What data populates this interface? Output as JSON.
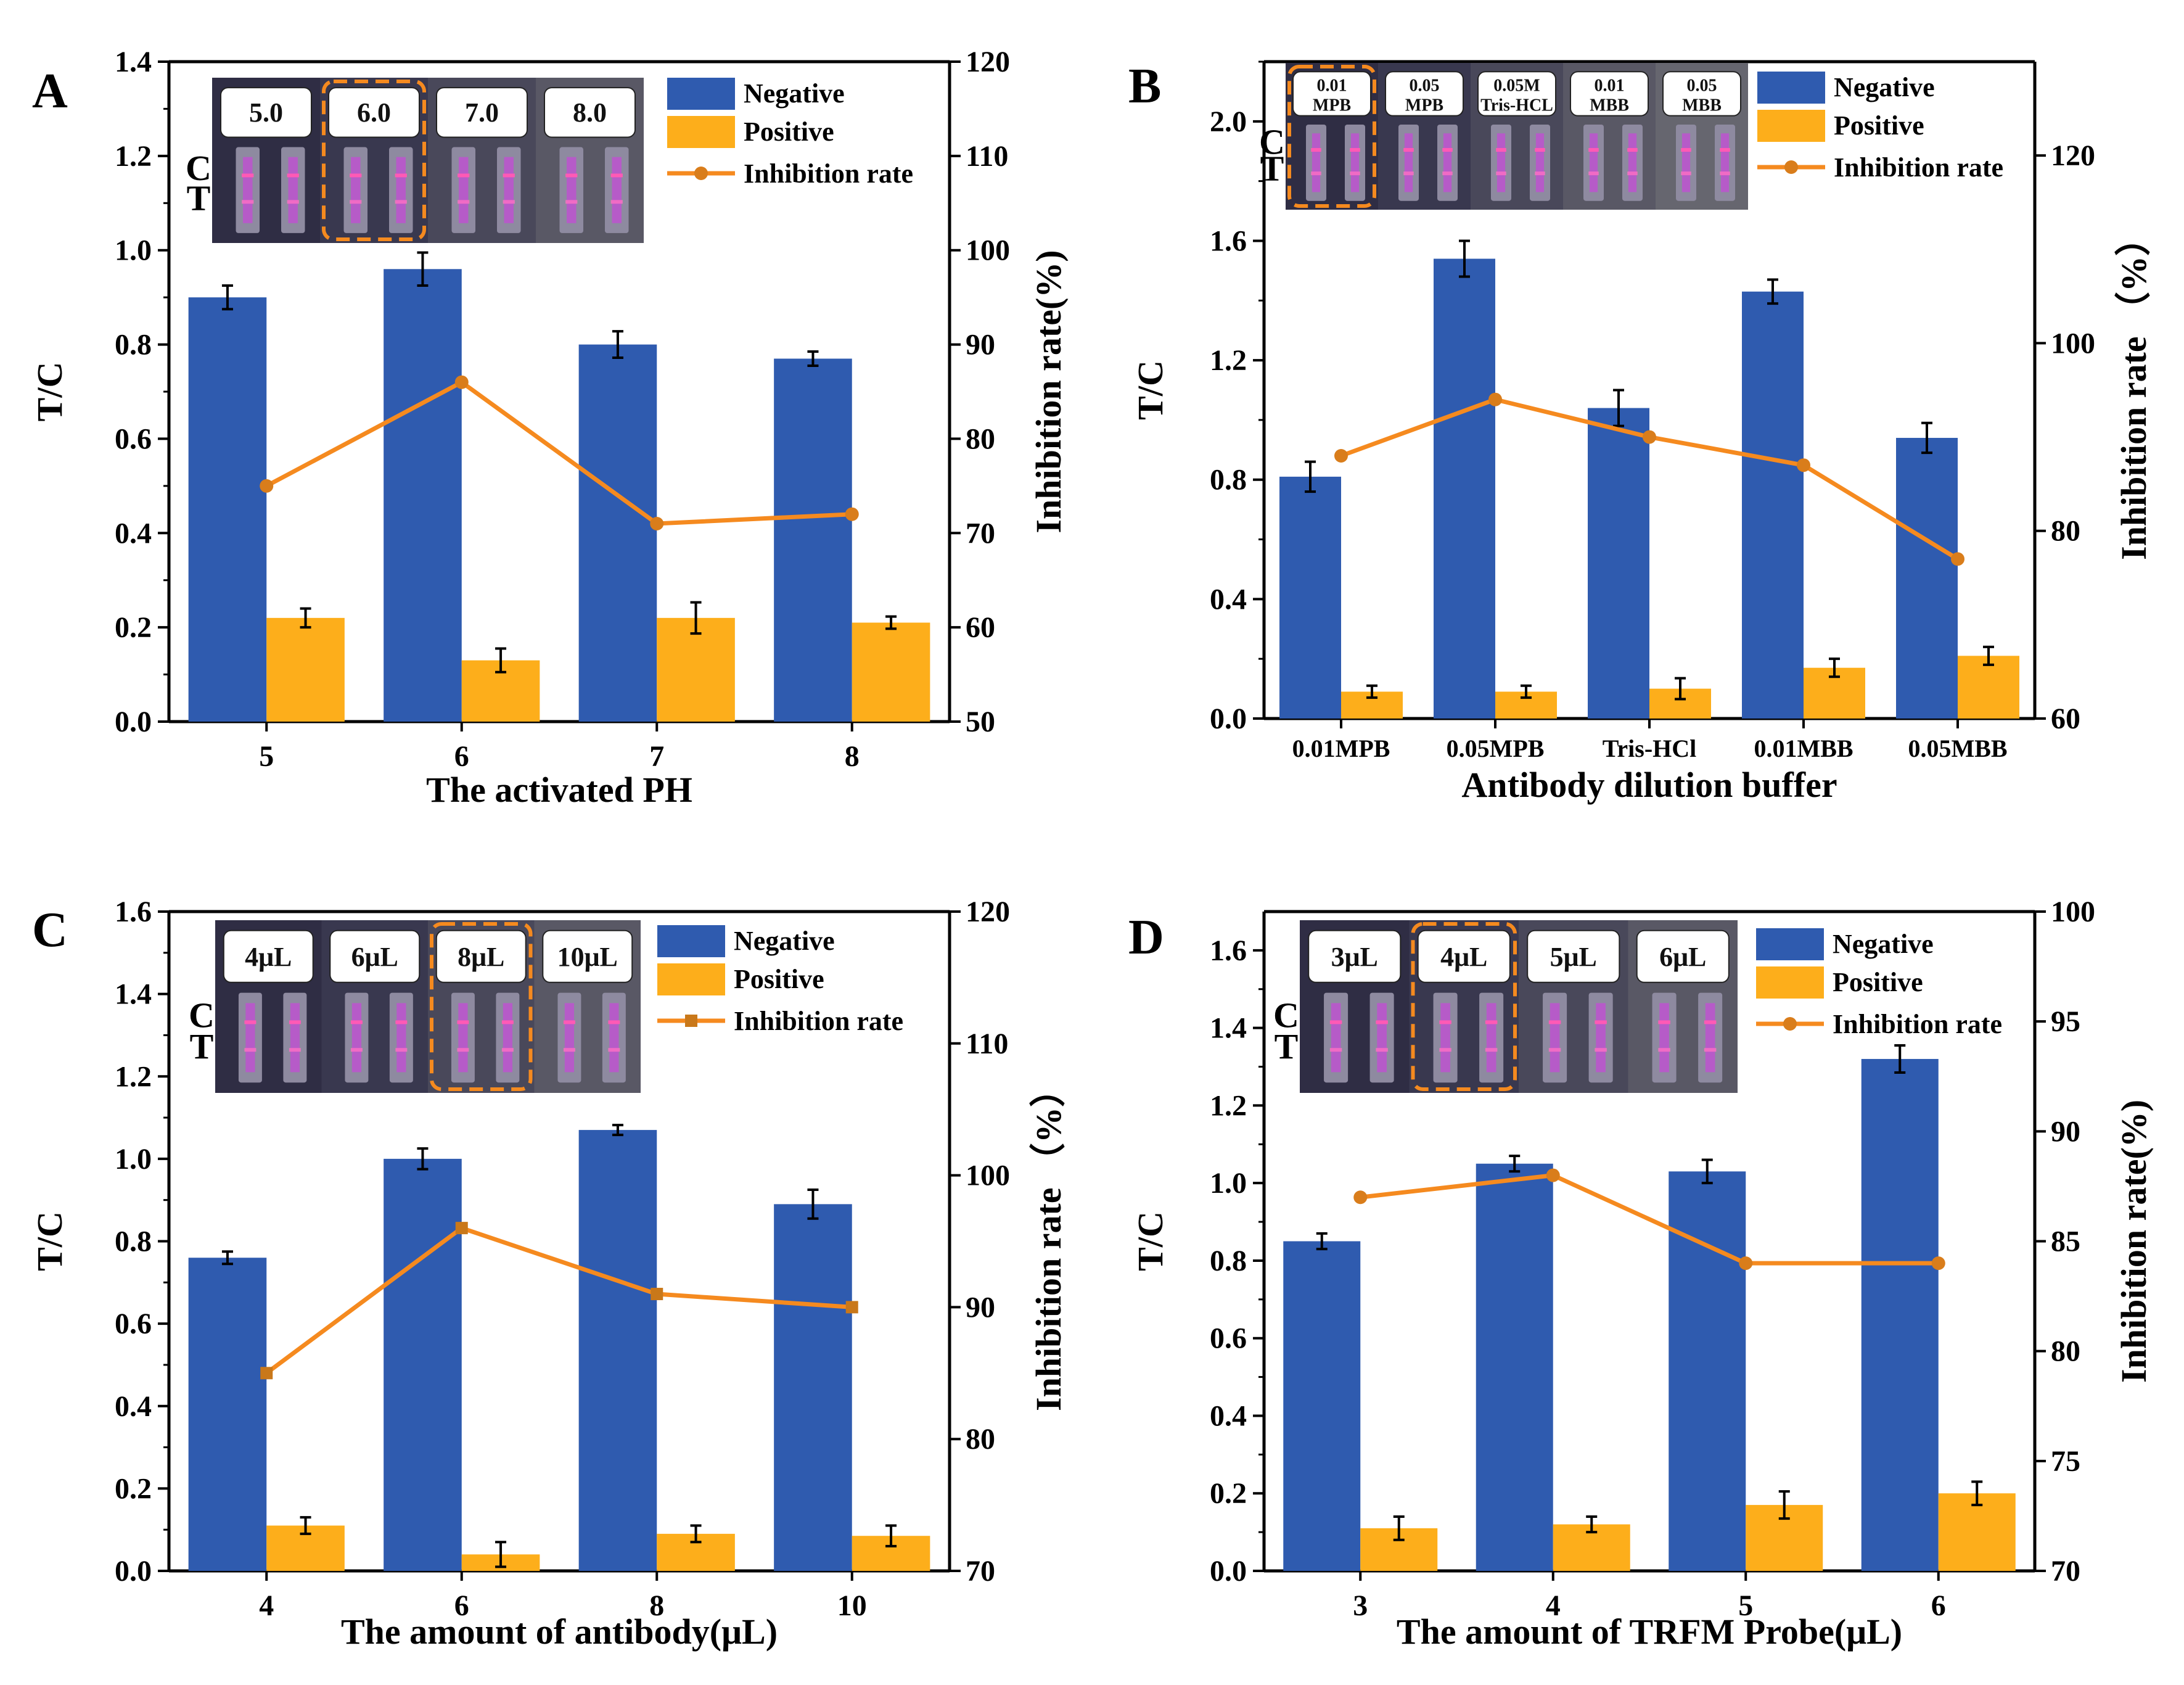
{
  "colors": {
    "negative": "#2f5baf",
    "positive": "#fdae1b",
    "line": "#f58a1f"
  },
  "chart_data": [
    {
      "id": "A",
      "type": "bar",
      "panel_letter": "A",
      "xlabel": "The activated PH",
      "ylabel": "T/C",
      "y2label": "Inhibition rate(%)",
      "ylim": [
        0,
        1.4
      ],
      "yticks": [
        "0.0",
        "0.2",
        "0.4",
        "0.6",
        "0.8",
        "1.0",
        "1.2",
        "1.4"
      ],
      "ystep": 0.2,
      "y2lim": [
        50,
        120
      ],
      "y2ticks": [
        "50",
        "60",
        "70",
        "80",
        "90",
        "100",
        "110",
        "120"
      ],
      "y2step": 10,
      "categories": [
        "5",
        "6",
        "7",
        "8"
      ],
      "series": [
        {
          "name": "Negative",
          "values": [
            0.9,
            0.96,
            0.8,
            0.77
          ],
          "errors": [
            0.025,
            0.035,
            0.028,
            0.015
          ]
        },
        {
          "name": "Positive",
          "values": [
            0.22,
            0.13,
            0.22,
            0.21
          ],
          "errors": [
            0.02,
            0.025,
            0.033,
            0.013
          ]
        },
        {
          "name": "Inhibition rate",
          "axis": "right",
          "values": [
            75,
            86,
            71,
            72
          ]
        }
      ],
      "legend": [
        "Negative",
        "Positive",
        "Inhibition rate"
      ],
      "strip_labels": [
        "5.0",
        "6.0",
        "7.0",
        "8.0"
      ],
      "highlight_index": 1,
      "strip_side_label": [
        "C",
        "T"
      ]
    },
    {
      "id": "B",
      "type": "bar",
      "panel_letter": "B",
      "xlabel": "Antibody dilution buffer",
      "ylabel": "T/C",
      "y2label": "Inhibition rate （%）",
      "ylim": [
        0,
        2.2
      ],
      "yticks": [
        "0.0",
        "0.4",
        "0.8",
        "1.2",
        "1.6",
        "2.0"
      ],
      "ystep": 0.4,
      "y2lim": [
        60,
        130
      ],
      "y2ticks": [
        "60",
        "80",
        "100",
        "120"
      ],
      "y2step": 20,
      "categories": [
        "0.01MPB",
        "0.05MPB",
        "Tris-HCl",
        "0.01MBB",
        "0.05MBB"
      ],
      "series": [
        {
          "name": "Negative",
          "values": [
            0.81,
            1.54,
            1.04,
            1.43,
            0.94
          ],
          "errors": [
            0.05,
            0.06,
            0.06,
            0.04,
            0.05
          ]
        },
        {
          "name": "Positive",
          "values": [
            0.09,
            0.09,
            0.1,
            0.17,
            0.21
          ],
          "errors": [
            0.02,
            0.02,
            0.035,
            0.03,
            0.03
          ]
        },
        {
          "name": "Inhibition rate",
          "axis": "right",
          "values": [
            88,
            94,
            90,
            87,
            77
          ]
        }
      ],
      "legend": [
        "Negative",
        "Positive",
        "Inhibition rate"
      ],
      "strip_labels": [
        "0.01 MPB",
        "0.05 MPB",
        "0.05M Tris-HCL",
        "0.01 MBB",
        "0.05 MBB"
      ],
      "highlight_index": 0,
      "strip_side_label": [
        "C",
        "T"
      ]
    },
    {
      "id": "C",
      "type": "bar",
      "panel_letter": "C",
      "xlabel": "The amount of antibody(μL)",
      "ylabel": "T/C",
      "y2label": "Inhibition rate （%）",
      "ylim": [
        0,
        1.6
      ],
      "yticks": [
        "0.0",
        "0.2",
        "0.4",
        "0.6",
        "0.8",
        "1.0",
        "1.2",
        "1.4",
        "1.6"
      ],
      "ystep": 0.2,
      "y2lim": [
        70,
        120
      ],
      "y2ticks": [
        "70",
        "80",
        "90",
        "100",
        "110",
        "120"
      ],
      "y2step": 10,
      "categories": [
        "4",
        "6",
        "8",
        "10"
      ],
      "series": [
        {
          "name": "Negative",
          "values": [
            0.76,
            1.0,
            1.07,
            0.89
          ],
          "errors": [
            0.015,
            0.025,
            0.012,
            0.035
          ]
        },
        {
          "name": "Positive",
          "values": [
            0.11,
            0.04,
            0.09,
            0.085
          ],
          "errors": [
            0.02,
            0.03,
            0.02,
            0.025
          ]
        },
        {
          "name": "Inhibition rate",
          "axis": "right",
          "values": [
            85,
            96,
            91,
            90
          ]
        }
      ],
      "legend": [
        "Negative",
        "Positive",
        "Inhibition rate"
      ],
      "strip_labels": [
        "4μL",
        "6μL",
        "8μL",
        "10μL"
      ],
      "highlight_index": 2,
      "strip_side_label": [
        "C",
        "T"
      ]
    },
    {
      "id": "D",
      "type": "bar",
      "panel_letter": "D",
      "xlabel": "The amount of TRFM Probe(μL)",
      "ylabel": "T/C",
      "y2label": "Inhibition rate(%)",
      "ylim": [
        0,
        1.7
      ],
      "yticks": [
        "0.0",
        "0.2",
        "0.4",
        "0.6",
        "0.8",
        "1.0",
        "1.2",
        "1.4",
        "1.6"
      ],
      "ystep": 0.2,
      "y2lim": [
        70,
        100
      ],
      "y2ticks": [
        "70",
        "75",
        "80",
        "85",
        "90",
        "95",
        "100"
      ],
      "y2step": 5,
      "categories": [
        "3",
        "4",
        "5",
        "6"
      ],
      "series": [
        {
          "name": "Negative",
          "values": [
            0.85,
            1.05,
            1.03,
            1.32
          ],
          "errors": [
            0.02,
            0.02,
            0.03,
            0.035
          ]
        },
        {
          "name": "Positive",
          "values": [
            0.11,
            0.12,
            0.17,
            0.2
          ],
          "errors": [
            0.03,
            0.02,
            0.035,
            0.03
          ]
        },
        {
          "name": "Inhibition rate",
          "axis": "right",
          "values": [
            87,
            88,
            84,
            84
          ]
        }
      ],
      "legend": [
        "Negative",
        "Positive",
        "Inhibition rate"
      ],
      "strip_labels": [
        "3μL",
        "4μL",
        "5μL",
        "6μL"
      ],
      "highlight_index": 1,
      "strip_side_label": [
        "C",
        "T"
      ]
    }
  ]
}
